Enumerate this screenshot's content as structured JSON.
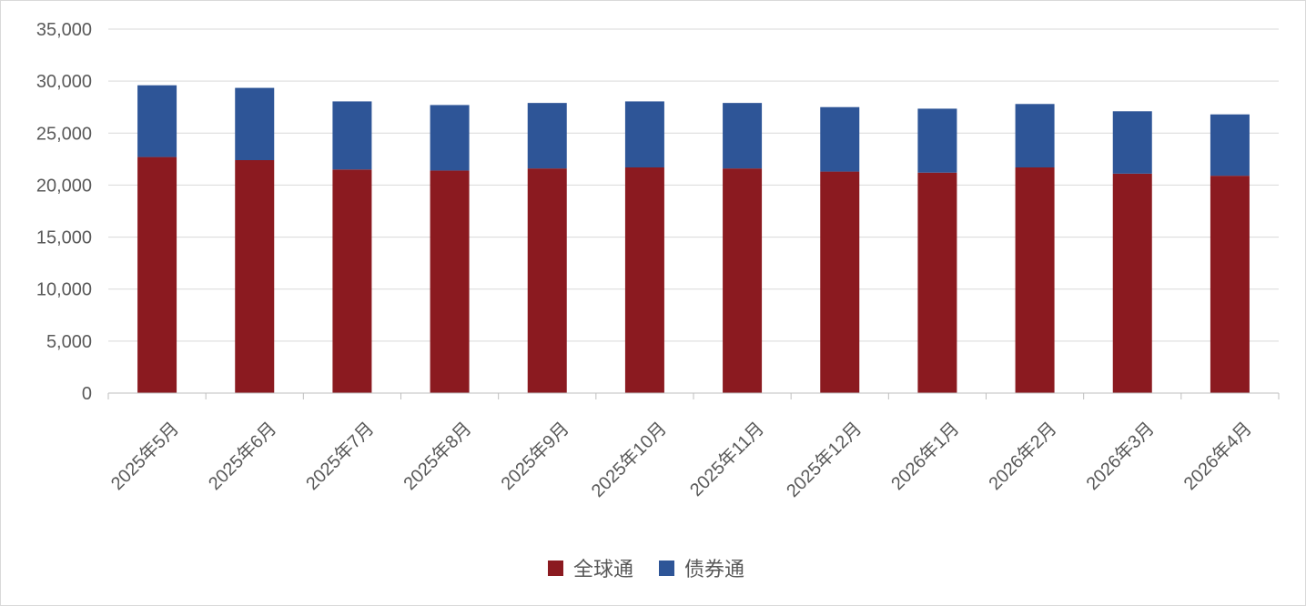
{
  "chart_data": {
    "type": "bar",
    "stacked": true,
    "categories": [
      "2025年5月",
      "2025年6月",
      "2025年7月",
      "2025年8月",
      "2025年9月",
      "2025年10月",
      "2025年11月",
      "2025年12月",
      "2026年1月",
      "2026年2月",
      "2026年3月",
      "2026年4月"
    ],
    "series": [
      {
        "name": "全球通",
        "color": "#8b1a20",
        "values": [
          22700,
          22400,
          21500,
          21400,
          21600,
          21700,
          21600,
          21300,
          21200,
          21700,
          21100,
          20900
        ]
      },
      {
        "name": "债券通",
        "color": "#2e5597",
        "values": [
          6900,
          6950,
          6550,
          6300,
          6300,
          6350,
          6300,
          6200,
          6150,
          6100,
          6000,
          5900
        ]
      }
    ],
    "y_ticks": [
      "0",
      "5,000",
      "10,000",
      "15,000",
      "20,000",
      "25,000",
      "30,000",
      "35,000"
    ],
    "ylim": [
      0,
      35000
    ],
    "grid": true,
    "legend_position": "bottom",
    "title": "",
    "xlabel": "",
    "ylabel": ""
  }
}
